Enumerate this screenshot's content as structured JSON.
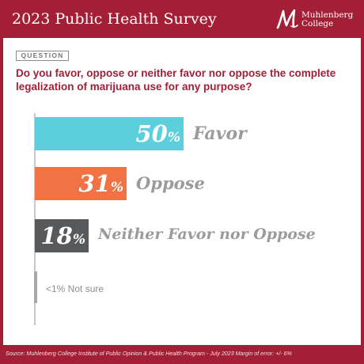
{
  "header": {
    "title": "2023 Public Health Survey",
    "logo_text_line1": "Muhlenberg",
    "logo_text_line2": "College"
  },
  "question": {
    "tag": "QUESTION",
    "text": "Do you favor, oppose or neither favor nor oppose the complete legalization of marijuana use for any purpose?"
  },
  "chart_data": {
    "type": "bar",
    "orientation": "horizontal",
    "categories": [
      "Favor",
      "Oppose",
      "Neither Favor nor Oppose",
      "Not sure"
    ],
    "values": [
      50,
      31,
      18,
      1
    ],
    "value_labels": [
      "50%",
      "31%",
      "18%",
      "<1%"
    ],
    "colors": [
      "#5ccfdc",
      "#f07245",
      "#58595b",
      "#a8a8a8"
    ],
    "grid": false,
    "legend": "none"
  },
  "bars": [
    {
      "value": "50",
      "pct_sign": "%",
      "label": "Favor"
    },
    {
      "value": "31",
      "pct_sign": "%",
      "label": "Oppose"
    },
    {
      "value": "18",
      "pct_sign": "%",
      "label": "Neither Favor nor Oppose"
    }
  ],
  "not_sure": {
    "text": "<1% Not sure"
  },
  "footer": {
    "source": "Source: Muhlenberg College Institute of Public Opinion & Public Health Program - July 2023 Margin of error: +/- 6%"
  }
}
